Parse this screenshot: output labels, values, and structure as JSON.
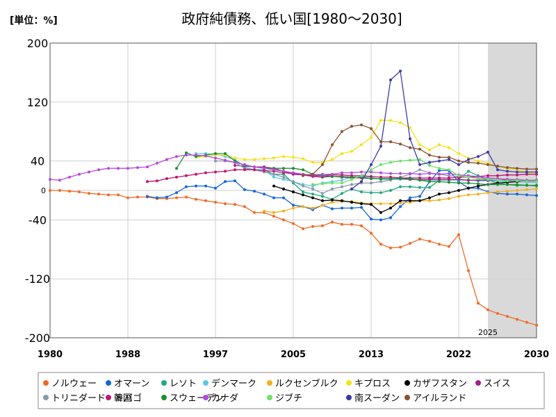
{
  "chart_data": {
    "type": "line",
    "title": "政府純債務、低い国[1980〜2030]",
    "unit_label": "[単位：%]",
    "xlabel": "",
    "ylabel": "",
    "xlim": [
      1980,
      2030
    ],
    "ylim": [
      -200,
      200
    ],
    "x_ticks": [
      "1980",
      "1988",
      "1997",
      "2005",
      "2013",
      "2022",
      "2030"
    ],
    "y_ticks": [
      "200",
      "120",
      "40",
      "0",
      "-40",
      "-120",
      "-200"
    ],
    "forecast_start": 2025,
    "forecast_label": "2025",
    "grid": true,
    "legend_position": "bottom",
    "series": [
      {
        "name": "ノルウェー",
        "color": "#f06a24",
        "x": [
          1980,
          1981,
          1982,
          1983,
          1984,
          1985,
          1986,
          1987,
          1988,
          1989,
          1990,
          1991,
          1992,
          1993,
          1994,
          1995,
          1996,
          1997,
          1998,
          1999,
          2000,
          2001,
          2002,
          2003,
          2004,
          2005,
          2006,
          2007,
          2008,
          2009,
          2010,
          2011,
          2012,
          2013,
          2014,
          2015,
          2016,
          2017,
          2018,
          2019,
          2020,
          2021,
          2022,
          2023,
          2024,
          2025,
          2026,
          2027,
          2028,
          2029,
          2030
        ],
        "y": [
          0,
          0,
          -1,
          -2,
          -4,
          -5,
          -6,
          -6,
          -10,
          -9,
          -9,
          -11,
          -11,
          -10,
          -9,
          -12,
          -14,
          -16,
          -18,
          -19,
          -22,
          -30,
          -30,
          -35,
          -40,
          -45,
          -52,
          -49,
          -48,
          -43,
          -46,
          -46,
          -48,
          -58,
          -73,
          -78,
          -77,
          -72,
          -66,
          -69,
          -73,
          -76,
          -60,
          -109,
          -153,
          -162,
          -167,
          -171,
          -175,
          -179,
          -183
        ]
      },
      {
        "name": "オマーン",
        "color": "#1565d8",
        "x": [
          1990,
          1991,
          1992,
          1993,
          1994,
          1995,
          1996,
          1997,
          1998,
          1999,
          2000,
          2001,
          2002,
          2003,
          2004,
          2005,
          2006,
          2007,
          2008,
          2009,
          2010,
          2011,
          2012,
          2013,
          2014,
          2015,
          2016,
          2017,
          2018,
          2019,
          2020,
          2021,
          2022,
          2023,
          2024,
          2025,
          2026,
          2027,
          2028,
          2029,
          2030
        ],
        "y": [
          -8,
          -10,
          -9,
          -3,
          5,
          6,
          6,
          3,
          12,
          13,
          1,
          -1,
          -5,
          -10,
          -10,
          -20,
          -22,
          -26,
          -20,
          -25,
          -24,
          -24,
          -23,
          -39,
          -40,
          -37,
          -22,
          -10,
          -8,
          12,
          27,
          27,
          12,
          3,
          3,
          -2,
          -4,
          -5,
          -5,
          -6,
          -7
        ]
      },
      {
        "name": "レソト",
        "color": "#1faa7a",
        "x": [
          2000,
          2001,
          2002,
          2003,
          2004,
          2005,
          2006,
          2007,
          2008,
          2009,
          2010,
          2011,
          2012,
          2013,
          2014,
          2015,
          2016,
          2017,
          2018,
          2019,
          2020,
          2021,
          2022,
          2023,
          2024,
          2025,
          2026,
          2027,
          2028,
          2029,
          2030
        ],
        "y": [
          30,
          28,
          28,
          22,
          22,
          10,
          -2,
          -5,
          -8,
          -12,
          -4,
          2,
          -2,
          -3,
          -3,
          0,
          5,
          5,
          4,
          4,
          14,
          14,
          15,
          26,
          20,
          14,
          10,
          8,
          8,
          7,
          6
        ]
      },
      {
        "name": "デンマーク",
        "color": "#5bc8e0",
        "x": [
          1995,
          1996,
          1997,
          1998,
          1999,
          2000,
          2001,
          2002,
          2003,
          2004,
          2005,
          2006,
          2007,
          2008,
          2009,
          2010,
          2011,
          2012,
          2013,
          2014,
          2015,
          2016,
          2017,
          2018,
          2019,
          2020,
          2021,
          2022,
          2023,
          2024,
          2025,
          2026,
          2027,
          2028,
          2029,
          2030
        ],
        "y": [
          50,
          50,
          49,
          46,
          42,
          32,
          28,
          28,
          18,
          15,
          12,
          8,
          6,
          10,
          12,
          14,
          18,
          18,
          18,
          15,
          15,
          15,
          15,
          14,
          14,
          14,
          14,
          14,
          14,
          13,
          13,
          13,
          12,
          12,
          11,
          11
        ]
      },
      {
        "name": "ルクセンブルク",
        "color": "#f0b020",
        "x": [
          2002,
          2003,
          2004,
          2005,
          2006,
          2007,
          2008,
          2009,
          2010,
          2011,
          2012,
          2013,
          2014,
          2015,
          2016,
          2017,
          2018,
          2019,
          2020,
          2021,
          2022,
          2023,
          2024,
          2025,
          2026,
          2027,
          2028,
          2029,
          2030
        ],
        "y": [
          -28,
          -30,
          -28,
          -24,
          -22,
          -24,
          -20,
          -16,
          -15,
          -15,
          -17,
          -18,
          -18,
          -18,
          -17,
          -16,
          -14,
          -14,
          -13,
          -11,
          -8,
          -6,
          -5,
          -3,
          -2,
          -1,
          0,
          1,
          2
        ]
      },
      {
        "name": "キプロス",
        "color": "#f5e21a",
        "x": [
          1995,
          1996,
          1997,
          1998,
          1999,
          2000,
          2001,
          2002,
          2003,
          2004,
          2005,
          2006,
          2007,
          2008,
          2009,
          2010,
          2011,
          2012,
          2013,
          2014,
          2015,
          2016,
          2017,
          2018,
          2019,
          2020,
          2021,
          2022,
          2023,
          2024,
          2025,
          2026,
          2027,
          2028,
          2029,
          2030
        ],
        "y": [
          45,
          46,
          48,
          48,
          44,
          42,
          42,
          43,
          44,
          46,
          45,
          43,
          38,
          38,
          42,
          50,
          53,
          62,
          72,
          95,
          95,
          92,
          85,
          62,
          55,
          62,
          58,
          50,
          44,
          40,
          37,
          33,
          30,
          28,
          25,
          22
        ]
      },
      {
        "name": "カザフスタン",
        "color": "#000000",
        "x": [
          2003,
          2004,
          2005,
          2006,
          2007,
          2008,
          2009,
          2010,
          2011,
          2012,
          2013,
          2014,
          2015,
          2016,
          2017,
          2018,
          2019,
          2020,
          2021,
          2022,
          2023,
          2024,
          2025,
          2026,
          2027,
          2028,
          2029,
          2030
        ],
        "y": [
          6,
          2,
          -2,
          -6,
          -10,
          -14,
          -13,
          -14,
          -16,
          -18,
          -19,
          -30,
          -24,
          -14,
          -14,
          -14,
          -10,
          -5,
          -3,
          0,
          3,
          6,
          8,
          10,
          11,
          12,
          13,
          14
        ]
      },
      {
        "name": "スイス",
        "color": "#a0208a",
        "x": [
          1999,
          2000,
          2001,
          2002,
          2003,
          2004,
          2005,
          2006,
          2007,
          2008,
          2009,
          2010,
          2011,
          2012,
          2013,
          2014,
          2015,
          2016,
          2017,
          2018,
          2019,
          2020,
          2021,
          2022,
          2023,
          2024,
          2025,
          2026,
          2027,
          2028,
          2029,
          2030
        ],
        "y": [
          34,
          33,
          32,
          32,
          30,
          26,
          22,
          21,
          19,
          18,
          19,
          18,
          17,
          17,
          16,
          16,
          16,
          16,
          15,
          15,
          15,
          15,
          15,
          15,
          14,
          14,
          14,
          14,
          14,
          14,
          14,
          14
        ]
      },
      {
        "name": "トリニダード・トバゴ",
        "color": "#8a9aaa",
        "x": [
          1997,
          1998,
          1999,
          2000,
          2001,
          2002,
          2003,
          2004,
          2005,
          2006,
          2007,
          2008,
          2009,
          2010,
          2011,
          2012,
          2013,
          2014,
          2015,
          2016,
          2017,
          2018,
          2019,
          2020,
          2021,
          2022,
          2023,
          2024,
          2025,
          2026,
          2027,
          2028,
          2029,
          2030
        ],
        "y": [
          40,
          40,
          38,
          30,
          28,
          25,
          22,
          18,
          12,
          6,
          2,
          -4,
          2,
          5,
          8,
          10,
          10,
          12,
          14,
          18,
          22,
          28,
          24,
          22,
          20,
          19,
          18,
          17,
          16,
          16,
          15,
          15,
          14,
          14
        ]
      },
      {
        "name": "韓国",
        "color": "#c0166e",
        "x": [
          1990,
          1991,
          1992,
          1993,
          1994,
          1995,
          1996,
          1997,
          1998,
          1999,
          2000,
          2001,
          2002,
          2003,
          2004,
          2005,
          2006,
          2007,
          2008,
          2009,
          2010,
          2011,
          2012,
          2013,
          2014,
          2015,
          2016,
          2017,
          2018,
          2019,
          2020,
          2021,
          2022,
          2023,
          2024,
          2025,
          2026,
          2027,
          2028,
          2029,
          2030
        ],
        "y": [
          12,
          13,
          16,
          18,
          20,
          22,
          24,
          25,
          26,
          28,
          28,
          28,
          27,
          26,
          24,
          23,
          22,
          20,
          20,
          21,
          21,
          20,
          20,
          19,
          18,
          18,
          17,
          17,
          17,
          17,
          17,
          17,
          18,
          18,
          19,
          20,
          20,
          21,
          21,
          22,
          22
        ]
      },
      {
        "name": "スウェーデン",
        "color": "#1a9030",
        "x": [
          1993,
          1994,
          1995,
          1996,
          1997,
          1998,
          1999,
          2000,
          2001,
          2002,
          2003,
          2004,
          2005,
          2006,
          2007,
          2008,
          2009,
          2010,
          2011,
          2012,
          2013,
          2014,
          2015,
          2016,
          2017,
          2018,
          2019,
          2020,
          2021,
          2022,
          2023,
          2024,
          2025,
          2026,
          2027,
          2028,
          2029,
          2030
        ],
        "y": [
          30,
          51,
          46,
          48,
          50,
          50,
          40,
          34,
          32,
          30,
          30,
          30,
          30,
          28,
          22,
          20,
          19,
          19,
          18,
          18,
          16,
          16,
          16,
          16,
          16,
          14,
          12,
          12,
          11,
          10,
          10,
          9,
          8,
          8,
          8,
          7,
          7,
          7
        ]
      },
      {
        "name": "カナダ",
        "color": "#b44ae0",
        "x": [
          1980,
          1981,
          1982,
          1983,
          1984,
          1985,
          1986,
          1987,
          1988,
          1989,
          1990,
          1991,
          1992,
          1993,
          1994,
          1995,
          1996,
          1997,
          1998,
          1999,
          2000,
          2001,
          2002,
          2003,
          2004,
          2005,
          2006,
          2007,
          2008,
          2009,
          2010,
          2011,
          2012,
          2013,
          2014,
          2015,
          2016,
          2017,
          2018,
          2019,
          2020,
          2021,
          2022,
          2023,
          2024,
          2025,
          2026,
          2027,
          2028,
          2029,
          2030
        ],
        "y": [
          15,
          14,
          18,
          22,
          25,
          28,
          30,
          30,
          30,
          31,
          32,
          37,
          42,
          46,
          48,
          48,
          47,
          44,
          41,
          38,
          35,
          32,
          30,
          28,
          26,
          24,
          22,
          21,
          22,
          22,
          24,
          24,
          25,
          25,
          24,
          23,
          23,
          23,
          22,
          23,
          22,
          23,
          21,
          20,
          19,
          17,
          16,
          15,
          14,
          13,
          13
        ]
      },
      {
        "name": "ジブチ",
        "color": "#6ee06a",
        "x": [
          2007,
          2008,
          2009,
          2010,
          2011,
          2012,
          2013,
          2014,
          2015,
          2016,
          2017,
          2018,
          2019,
          2020,
          2021,
          2022,
          2023,
          2024,
          2025,
          2026,
          2027,
          2028,
          2029,
          2030
        ],
        "y": [
          8,
          9,
          10,
          10,
          15,
          20,
          28,
          35,
          38,
          40,
          41,
          42,
          34,
          30,
          28,
          20,
          18,
          16,
          15,
          14,
          13,
          13,
          12,
          12
        ]
      },
      {
        "name": "南スーダン",
        "color": "#3a3aa8",
        "x": [
          2011,
          2012,
          2013,
          2014,
          2015,
          2016,
          2017,
          2018,
          2019,
          2020,
          2021,
          2022,
          2023,
          2024,
          2025,
          2026,
          2027,
          2028,
          2029,
          2030
        ],
        "y": [
          2,
          12,
          35,
          60,
          150,
          162,
          70,
          35,
          38,
          40,
          42,
          35,
          42,
          46,
          52,
          28,
          26,
          25,
          25,
          25
        ]
      },
      {
        "name": "アイルランド",
        "color": "#8a5230",
        "x": [
          2006,
          2007,
          2008,
          2009,
          2010,
          2011,
          2012,
          2013,
          2014,
          2015,
          2016,
          2017,
          2018,
          2019,
          2020,
          2021,
          2022,
          2023,
          2024,
          2025,
          2026,
          2027,
          2028,
          2029,
          2030
        ],
        "y": [
          20,
          22,
          35,
          62,
          80,
          87,
          89,
          84,
          66,
          66,
          63,
          58,
          56,
          48,
          45,
          45,
          40,
          38,
          37,
          35,
          33,
          31,
          30,
          29,
          29
        ]
      }
    ]
  }
}
